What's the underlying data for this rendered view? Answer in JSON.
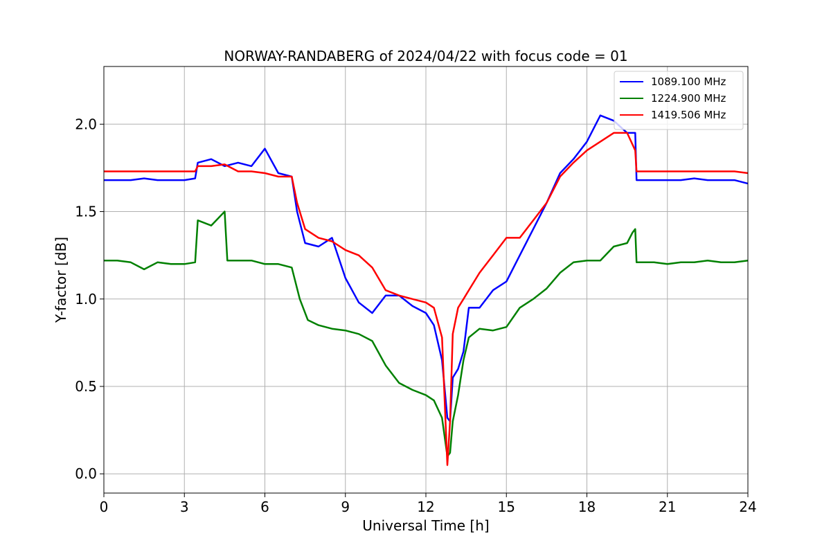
{
  "chart_data": {
    "type": "line",
    "title": "NORWAY-RANDABERG of 2024/04/22 with focus code = 01",
    "xlabel": "Universal Time [h]",
    "ylabel": "Y-factor [dB]",
    "xlim": [
      0,
      24
    ],
    "ylim": [
      -0.11,
      2.33
    ],
    "x_ticks": [
      0,
      3,
      6,
      9,
      12,
      15,
      18,
      21,
      24
    ],
    "x_tick_labels": [
      "0",
      "3",
      "6",
      "9",
      "12",
      "15",
      "18",
      "21",
      "24"
    ],
    "y_ticks": [
      0.0,
      0.5,
      1.0,
      1.5,
      2.0
    ],
    "y_tick_labels": [
      "0.0",
      "0.5",
      "1.0",
      "1.5",
      "2.0"
    ],
    "grid": true,
    "legend_position": "top-right",
    "series": [
      {
        "name": "1089.100 MHz",
        "color": "#0000ff",
        "x": [
          0,
          0.5,
          1,
          1.5,
          2,
          2.5,
          3,
          3.4,
          3.5,
          4,
          4.5,
          5,
          5.5,
          6,
          6.5,
          7,
          7.2,
          7.5,
          8,
          8.5,
          9,
          9.5,
          10,
          10.5,
          11,
          11.5,
          12,
          12.3,
          12.6,
          12.8,
          12.9,
          13.0,
          13.2,
          13.4,
          13.6,
          14,
          14.5,
          15,
          15.5,
          16,
          16.5,
          17,
          17.5,
          18,
          18.5,
          19,
          19.5,
          19.8,
          19.85,
          20,
          20.5,
          21,
          21.5,
          22,
          22.5,
          23,
          23.5,
          24
        ],
        "y": [
          1.68,
          1.68,
          1.68,
          1.69,
          1.68,
          1.68,
          1.68,
          1.69,
          1.78,
          1.8,
          1.76,
          1.78,
          1.76,
          1.86,
          1.72,
          1.7,
          1.5,
          1.32,
          1.3,
          1.35,
          1.12,
          0.98,
          0.92,
          1.02,
          1.02,
          0.96,
          0.92,
          0.85,
          0.65,
          0.32,
          0.3,
          0.55,
          0.6,
          0.7,
          0.95,
          0.95,
          1.05,
          1.1,
          1.25,
          1.4,
          1.55,
          1.72,
          1.8,
          1.9,
          2.05,
          2.02,
          1.95,
          1.95,
          1.68,
          1.68,
          1.68,
          1.68,
          1.68,
          1.69,
          1.68,
          1.68,
          1.68,
          1.66
        ]
      },
      {
        "name": "1224.900 MHz",
        "color": "#008000",
        "x": [
          0,
          0.5,
          1,
          1.5,
          2,
          2.5,
          3,
          3.4,
          3.5,
          4,
          4.5,
          4.6,
          5,
          5.5,
          6,
          6.5,
          7,
          7.3,
          7.6,
          8,
          8.5,
          9,
          9.5,
          10,
          10.5,
          11,
          11.5,
          12,
          12.3,
          12.6,
          12.8,
          12.9,
          13.0,
          13.2,
          13.4,
          13.6,
          14,
          14.5,
          15,
          15.5,
          16,
          16.5,
          17,
          17.5,
          18,
          18.5,
          19,
          19.5,
          19.7,
          19.8,
          19.85,
          20,
          20.5,
          21,
          21.5,
          22,
          22.5,
          23,
          23.5,
          24
        ],
        "y": [
          1.22,
          1.22,
          1.21,
          1.17,
          1.21,
          1.2,
          1.2,
          1.21,
          1.45,
          1.42,
          1.5,
          1.22,
          1.22,
          1.22,
          1.2,
          1.2,
          1.18,
          1.0,
          0.88,
          0.85,
          0.83,
          0.82,
          0.8,
          0.76,
          0.62,
          0.52,
          0.48,
          0.45,
          0.42,
          0.32,
          0.1,
          0.12,
          0.3,
          0.45,
          0.65,
          0.78,
          0.83,
          0.82,
          0.84,
          0.95,
          1.0,
          1.06,
          1.15,
          1.21,
          1.22,
          1.22,
          1.3,
          1.32,
          1.38,
          1.4,
          1.21,
          1.21,
          1.21,
          1.2,
          1.21,
          1.21,
          1.22,
          1.21,
          1.21,
          1.22
        ]
      },
      {
        "name": "1419.506 MHz",
        "color": "#ff0000",
        "x": [
          0,
          0.5,
          1,
          1.5,
          2,
          2.5,
          3,
          3.4,
          3.5,
          4,
          4.5,
          5,
          5.5,
          6,
          6.5,
          7,
          7.2,
          7.5,
          8,
          8.5,
          9,
          9.5,
          10,
          10.5,
          11,
          11.5,
          12,
          12.3,
          12.6,
          12.8,
          12.9,
          13.0,
          13.2,
          13.4,
          13.6,
          14,
          14.5,
          15,
          15.5,
          16,
          16.5,
          17,
          17.5,
          18,
          18.5,
          19,
          19.5,
          19.8,
          19.85,
          20,
          20.5,
          21,
          21.5,
          22,
          22.5,
          23,
          23.5,
          24
        ],
        "y": [
          1.73,
          1.73,
          1.73,
          1.73,
          1.73,
          1.73,
          1.73,
          1.73,
          1.76,
          1.76,
          1.77,
          1.73,
          1.73,
          1.72,
          1.7,
          1.7,
          1.55,
          1.4,
          1.35,
          1.33,
          1.28,
          1.25,
          1.18,
          1.05,
          1.02,
          1.0,
          0.98,
          0.95,
          0.78,
          0.05,
          0.3,
          0.8,
          0.95,
          1.0,
          1.05,
          1.15,
          1.25,
          1.35,
          1.35,
          1.45,
          1.55,
          1.7,
          1.78,
          1.85,
          1.9,
          1.95,
          1.95,
          1.85,
          1.73,
          1.73,
          1.73,
          1.73,
          1.73,
          1.73,
          1.73,
          1.73,
          1.73,
          1.72
        ]
      }
    ]
  }
}
